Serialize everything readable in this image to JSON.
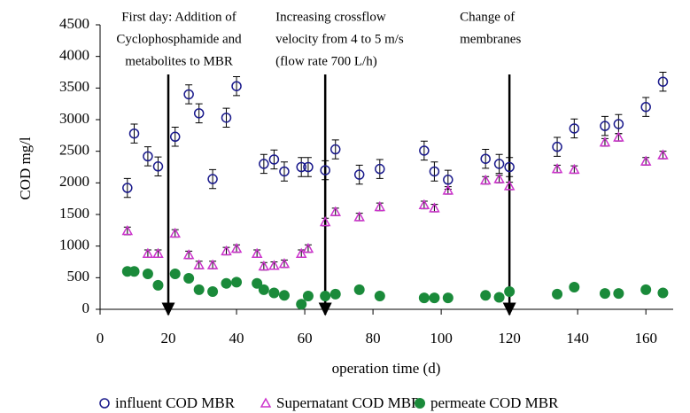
{
  "chart_data": {
    "type": "scatter",
    "xlabel": "operation time (d)",
    "ylabel": "COD mg/l",
    "xlim": [
      0,
      168
    ],
    "ylim": [
      0,
      4500
    ],
    "xticks": [
      0,
      20,
      40,
      60,
      80,
      100,
      120,
      140,
      160
    ],
    "yticks": [
      0,
      500,
      1000,
      1500,
      2000,
      2500,
      3000,
      3500,
      4000,
      4500
    ],
    "series": [
      {
        "name": "influent COD MBR",
        "color": "#1a1a8c",
        "marker": "circle-open",
        "error": 150,
        "x": [
          8,
          10,
          14,
          17,
          22,
          26,
          29,
          33,
          37,
          40,
          48,
          51,
          54,
          59,
          61,
          66,
          69,
          76,
          82,
          95,
          98,
          102,
          113,
          117,
          120,
          134,
          139,
          148,
          152,
          160,
          165
        ],
        "values": [
          1920,
          2780,
          2420,
          2260,
          2730,
          3400,
          3100,
          2060,
          3030,
          3530,
          2300,
          2370,
          2180,
          2250,
          2250,
          2200,
          2530,
          2130,
          2220,
          2510,
          2180,
          2050,
          2380,
          2300,
          2250,
          2570,
          2860,
          2900,
          2930,
          3200,
          3600
        ]
      },
      {
        "name": "Supernatant COD MBR",
        "color": "#cc33cc",
        "marker": "triangle-open",
        "error": 60,
        "x": [
          8,
          14,
          17,
          22,
          26,
          29,
          33,
          37,
          40,
          46,
          48,
          51,
          54,
          59,
          61,
          66,
          69,
          76,
          82,
          95,
          98,
          102,
          113,
          117,
          120,
          134,
          139,
          148,
          152,
          160,
          165
        ],
        "values": [
          1240,
          880,
          880,
          1200,
          860,
          700,
          700,
          920,
          960,
          880,
          680,
          690,
          720,
          880,
          960,
          1380,
          1540,
          1460,
          1620,
          1650,
          1600,
          1880,
          2040,
          2060,
          1950,
          2220,
          2210,
          2640,
          2720,
          2340,
          2440
        ]
      },
      {
        "name": "permeate COD MBR",
        "color": "#1a8a3a",
        "marker": "circle",
        "x": [
          8,
          10,
          14,
          17,
          22,
          26,
          29,
          33,
          37,
          40,
          46,
          48,
          51,
          54,
          59,
          61,
          66,
          69,
          76,
          82,
          95,
          98,
          102,
          113,
          117,
          120,
          134,
          139,
          148,
          152,
          160,
          165
        ],
        "values": [
          600,
          600,
          560,
          380,
          560,
          490,
          310,
          280,
          410,
          430,
          410,
          310,
          260,
          220,
          80,
          210,
          210,
          240,
          310,
          210,
          180,
          180,
          180,
          220,
          190,
          280,
          240,
          350,
          250,
          250,
          310,
          260
        ]
      }
    ],
    "annotations": [
      {
        "x": 20,
        "lines": [
          "First day: Addition of",
          "Cyclophosphamide and",
          "metabolites to MBR"
        ]
      },
      {
        "x": 66,
        "lines": [
          "Increasing crossflow",
          "velocity from 4 to 5 m/s",
          "(flow rate 700 L/h)"
        ]
      },
      {
        "x": 120,
        "lines": [
          "Change of",
          "membranes"
        ]
      }
    ]
  }
}
